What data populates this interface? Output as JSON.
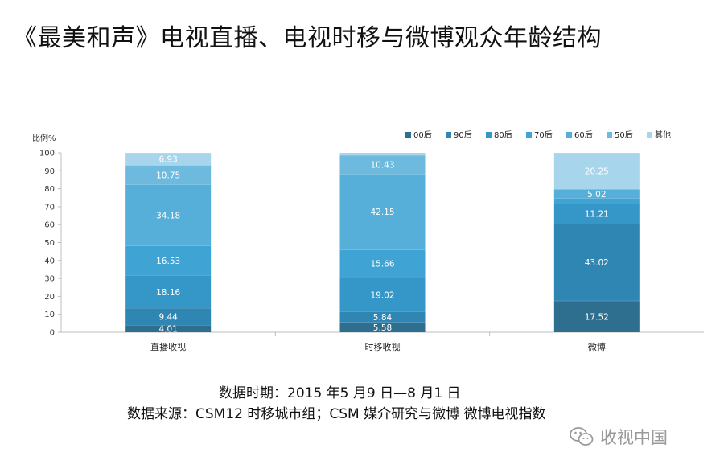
{
  "title": "《最美和声》电视直播、电视时移与微博观众年龄结构",
  "chart_data": {
    "type": "bar",
    "stacked": true,
    "ylabel": "比例%",
    "ylim": [
      0,
      100
    ],
    "yticks": [
      0,
      10,
      20,
      30,
      40,
      50,
      60,
      70,
      80,
      90,
      100
    ],
    "categories": [
      "直播收视",
      "时移收视",
      "微博"
    ],
    "legend_position": "top-right",
    "series": [
      {
        "name": "00后",
        "color": "#2e6e8e",
        "values": [
          4.01,
          5.58,
          17.52
        ]
      },
      {
        "name": "90后",
        "color": "#2f86b3",
        "values": [
          9.44,
          5.84,
          43.02
        ]
      },
      {
        "name": "80后",
        "color": "#3596c8",
        "values": [
          18.16,
          19.02,
          11.21
        ]
      },
      {
        "name": "70后",
        "color": "#3fa3d3",
        "values": [
          16.53,
          15.66,
          2.98
        ]
      },
      {
        "name": "60后",
        "color": "#55afd8",
        "values": [
          34.18,
          42.15,
          5.02
        ]
      },
      {
        "name": "50后",
        "color": "#6dbade",
        "values": [
          10.75,
          10.43,
          null
        ]
      },
      {
        "name": "其他",
        "color": "#a6d5ec",
        "values": [
          6.93,
          null,
          20.25
        ]
      }
    ],
    "data_labels": [
      [
        "4.01",
        "9.44",
        "18.16",
        "16.53",
        "34.18",
        "10.75",
        "6.93"
      ],
      [
        "5.58",
        "5.84",
        "19.02",
        "15.66",
        "42.15",
        "10.43",
        ""
      ],
      [
        "17.52",
        "43.02",
        "11.21",
        "",
        "5.02",
        "",
        "20.25"
      ]
    ]
  },
  "footer": {
    "period": "数据时期：2015 年5 月9 日—8 月1 日",
    "source": "数据来源：CSM12 时移城市组；CSM 媒介研究与微博 微博电视指数"
  },
  "watermark": {
    "text": "收视中国",
    "icon": "wechat-icon"
  }
}
